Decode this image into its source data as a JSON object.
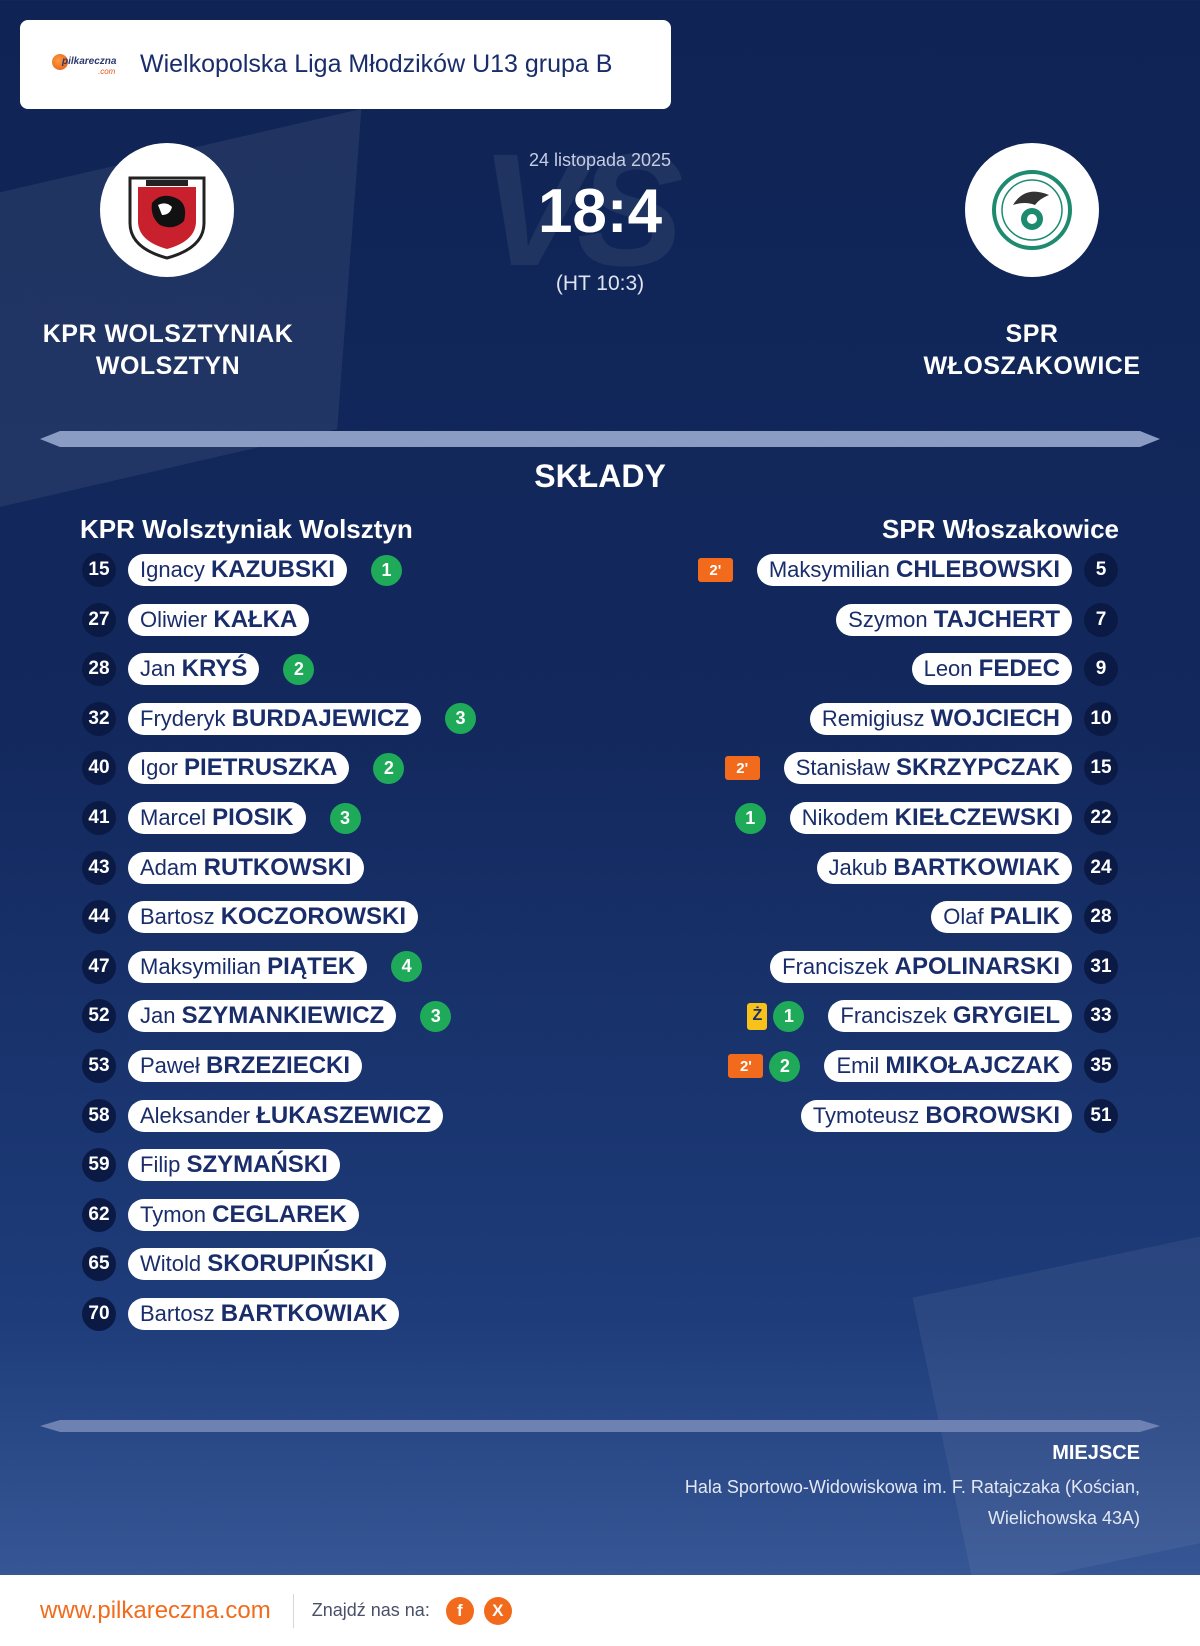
{
  "header": {
    "logo_text": "pilkareczna",
    "logo_suffix": ".com",
    "league": "Wielkopolska Liga Młodzików U13 grupa B"
  },
  "match": {
    "date": "24 listopada 2025",
    "score": "18:4",
    "halftime": "(HT 10:3)",
    "vs_text": "VS",
    "home_name_line1": "KPR WOLSZTYNIAK",
    "home_name_line2": "WOLSZTYN",
    "away_name_line1": "SPR",
    "away_name_line2": "WŁOSZAKOWICE"
  },
  "lineups": {
    "title": "SKŁADY",
    "home_team": "KPR Wolsztyniak Wolsztyn",
    "away_team": "SPR Włoszakowice",
    "home_players": [
      {
        "number": "15",
        "first": "Ignacy",
        "last": "KAZUBSKI",
        "goals": "1"
      },
      {
        "number": "27",
        "first": "Oliwier",
        "last": "KAŁKA"
      },
      {
        "number": "28",
        "first": "Jan",
        "last": "KRYŚ",
        "goals": "2"
      },
      {
        "number": "32",
        "first": "Fryderyk",
        "last": "BURDAJEWICZ",
        "goals": "3"
      },
      {
        "number": "40",
        "first": "Igor",
        "last": "PIETRUSZKA",
        "goals": "2"
      },
      {
        "number": "41",
        "first": "Marcel",
        "last": "PIOSIK",
        "goals": "3"
      },
      {
        "number": "43",
        "first": "Adam",
        "last": "RUTKOWSKI"
      },
      {
        "number": "44",
        "first": "Bartosz",
        "last": "KOCZOROWSKI"
      },
      {
        "number": "47",
        "first": "Maksymilian",
        "last": "PIĄTEK",
        "goals": "4"
      },
      {
        "number": "52",
        "first": "Jan",
        "last": "SZYMANKIEWICZ",
        "goals": "3"
      },
      {
        "number": "53",
        "first": "Paweł",
        "last": "BRZEZIECKI"
      },
      {
        "number": "58",
        "first": "Aleksander",
        "last": "ŁUKASZEWICZ"
      },
      {
        "number": "59",
        "first": "Filip",
        "last": "SZYMAŃSKI"
      },
      {
        "number": "62",
        "first": "Tymon",
        "last": "CEGLAREK"
      },
      {
        "number": "65",
        "first": "Witold",
        "last": "SKORUPIŃSKI"
      },
      {
        "number": "70",
        "first": "Bartosz",
        "last": "BARTKOWIAK"
      }
    ],
    "away_players": [
      {
        "number": "5",
        "first": "Maksymilian",
        "last": "CHLEBOWSKI",
        "suspension": "2'"
      },
      {
        "number": "7",
        "first": "Szymon",
        "last": "TAJCHERT"
      },
      {
        "number": "9",
        "first": "Leon",
        "last": "FEDEC"
      },
      {
        "number": "10",
        "first": "Remigiusz",
        "last": "WOJCIECH"
      },
      {
        "number": "15",
        "first": "Stanisław",
        "last": "SKRZYPCZAK",
        "suspension": "2'"
      },
      {
        "number": "22",
        "first": "Nikodem",
        "last": "KIEŁCZEWSKI",
        "goals": "1"
      },
      {
        "number": "24",
        "first": "Jakub",
        "last": "BARTKOWIAK"
      },
      {
        "number": "28",
        "first": "Olaf",
        "last": "PALIK"
      },
      {
        "number": "31",
        "first": "Franciszek",
        "last": "APOLINARSKI"
      },
      {
        "number": "33",
        "first": "Franciszek",
        "last": "GRYGIEL",
        "goals": "1",
        "yellow": "Ż"
      },
      {
        "number": "35",
        "first": "Emil",
        "last": "MIKOŁAJCZAK",
        "goals": "2",
        "suspension": "2'"
      },
      {
        "number": "51",
        "first": "Tymoteusz",
        "last": "BOROWSKI"
      }
    ]
  },
  "venue": {
    "label": "MIEJSCE",
    "line1": "Hala Sportowo-Widowiskowa im. F. Ratajczaka (Kościan,",
    "line2": "Wielichowska 43A)"
  },
  "footer": {
    "url": "www.pilkareczna.com",
    "find_us": "Znajdź nas na:",
    "facebook": "f",
    "x": "X"
  },
  "colors": {
    "background": "#13295e",
    "goal": "#1faa59",
    "suspension": "#f26b1d",
    "yellow_card": "#f7c31a",
    "accent": "#f26b1d"
  }
}
